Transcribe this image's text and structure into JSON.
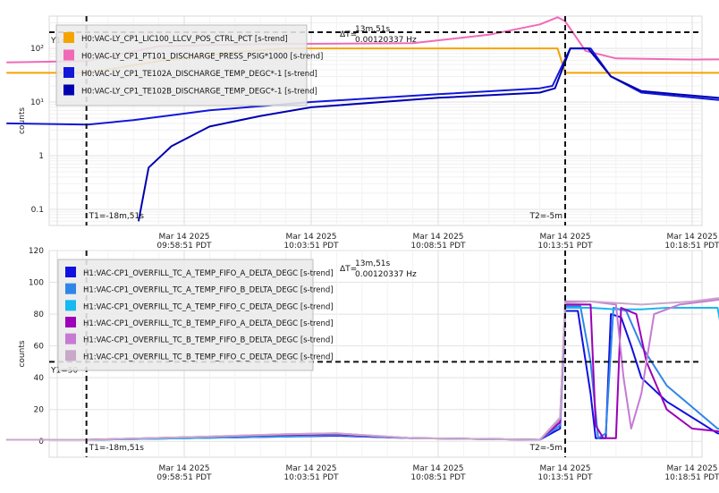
{
  "chart_data": [
    {
      "type": "line",
      "ylabel": "counts",
      "yscale": "log",
      "yticks": [
        "0.1",
        "1",
        "10¹",
        "10²"
      ],
      "ytick_values": [
        0.1,
        1,
        10,
        100
      ],
      "ylim": [
        0.05,
        400
      ],
      "xlim_minutes": [
        -22,
        13
      ],
      "xticks": [
        {
          "minute": -15,
          "date": "Mar 14 2025",
          "time": "09:58:51 PDT"
        },
        {
          "minute": -10,
          "date": "Mar 14 2025",
          "time": "10:03:51 PDT"
        },
        {
          "minute": -5,
          "date": "Mar 14 2025",
          "time": "10:08:51 PDT"
        },
        {
          "minute": 0,
          "date": "Mar 14 2025",
          "time": "10:13:51 PDT"
        },
        {
          "minute": 5,
          "date": "Mar 14 2025",
          "time": "10:18:51 PDT"
        }
      ],
      "cursor_t1": {
        "minute": -18.85,
        "label": "T1=-18m,51s"
      },
      "cursor_t2": {
        "minute": -5,
        "label": "T2=-5m"
      },
      "cursor_y1": {
        "value": 200,
        "label": "Y1="
      },
      "delta": {
        "label": "ΔT=",
        "value": "13m,51s",
        "freq": "0.00120337 Hz"
      },
      "legend_placement": "top-left",
      "series": [
        {
          "name": "H0:VAC-LY_CP1_LIC100_LLCV_POS_CTRL_PCT [s-trend]",
          "color": "#f5a300",
          "points": [
            [
              -22,
              35
            ],
            [
              -18.8,
              35
            ],
            [
              -16,
              58
            ],
            [
              -13,
              85
            ],
            [
              -11,
              100
            ],
            [
              -0.3,
              100
            ],
            [
              0,
              35
            ],
            [
              13,
              35
            ]
          ]
        },
        {
          "name": "H0:VAC-LY_CP1_PT101_DISCHARGE_PRESS_PSIG*1000 [s-trend]",
          "color": "#f06ab8",
          "points": [
            [
              -22,
              55
            ],
            [
              -18.8,
              58
            ],
            [
              -16,
              110
            ],
            [
              -12,
              120
            ],
            [
              -6,
              125
            ],
            [
              -3,
              180
            ],
            [
              -1,
              280
            ],
            [
              -0.3,
              380
            ],
            [
              0,
              320
            ],
            [
              0.8,
              90
            ],
            [
              2,
              65
            ],
            [
              5,
              62
            ],
            [
              8,
              63
            ],
            [
              11,
              60
            ],
            [
              13,
              58
            ]
          ]
        },
        {
          "name": "H0:VAC-LY_CP1_TE102A_DISCHARGE_TEMP_DEGC*-1 [s-trend]",
          "color": "#1218d8",
          "points": [
            [
              -22,
              4
            ],
            [
              -18.8,
              3.8
            ],
            [
              -17,
              4.6
            ],
            [
              -14,
              7
            ],
            [
              -10,
              10
            ],
            [
              -5,
              14
            ],
            [
              -1,
              18
            ],
            [
              -0.5,
              20
            ],
            [
              0.2,
              100
            ],
            [
              1,
              100
            ],
            [
              1.8,
              30
            ],
            [
              3,
              15
            ],
            [
              6,
              11
            ],
            [
              10,
              9
            ],
            [
              13,
              8.5
            ]
          ]
        },
        {
          "name": "H0:VAC-LY_CP1_TE102B_DISCHARGE_TEMP_DEGC*-1 [s-trend]",
          "color": "#0000b0",
          "points": [
            [
              -16.8,
              0.06
            ],
            [
              -16.4,
              0.6
            ],
            [
              -15.5,
              1.5
            ],
            [
              -14,
              3.5
            ],
            [
              -12,
              5.5
            ],
            [
              -10,
              8
            ],
            [
              -5,
              12
            ],
            [
              -1,
              15
            ],
            [
              -0.4,
              18
            ],
            [
              0.2,
              100
            ],
            [
              0.9,
              100
            ],
            [
              1.8,
              30
            ],
            [
              3,
              16
            ],
            [
              6,
              12
            ],
            [
              10,
              10
            ],
            [
              13,
              9
            ]
          ]
        }
      ]
    },
    {
      "type": "line",
      "ylabel": "counts",
      "yticks": [
        "0",
        "20",
        "40",
        "60",
        "80",
        "100",
        "120"
      ],
      "ytick_values": [
        0,
        20,
        40,
        60,
        80,
        100,
        120
      ],
      "ylim": [
        -10,
        120
      ],
      "xlim_minutes": [
        -22,
        13
      ],
      "xticks": [
        {
          "minute": -15,
          "date": "Mar 14 2025",
          "time": "09:58:51 PDT"
        },
        {
          "minute": -10,
          "date": "Mar 14 2025",
          "time": "10:03:51 PDT"
        },
        {
          "minute": -5,
          "date": "Mar 14 2025",
          "time": "10:08:51 PDT"
        },
        {
          "minute": 0,
          "date": "Mar 14 2025",
          "time": "10:13:51 PDT"
        },
        {
          "minute": 5,
          "date": "Mar 14 2025",
          "time": "10:18:51 PDT"
        }
      ],
      "cursor_t1": {
        "minute": -18.85,
        "label": "T1=-18m,51s"
      },
      "cursor_t2": {
        "minute": -5,
        "label": "T2=-5m"
      },
      "cursor_y1": {
        "value": 50,
        "label": "Y1=50"
      },
      "delta": {
        "label": "ΔT=",
        "value": "13m,51s",
        "freq": "0.00120337 Hz"
      },
      "legend_placement": "top-left",
      "series": [
        {
          "name": "H1:VAC-CP1_OVERFILL_TC_A_TEMP_FIFO_A_DELTA_DEGC [s-trend]",
          "color": "#1010e0",
          "points": [
            [
              -22,
              1
            ],
            [
              -18.8,
              1
            ],
            [
              -15,
              2
            ],
            [
              -11,
              3
            ],
            [
              -9,
              3.5
            ],
            [
              -6,
              2
            ],
            [
              -1,
              1
            ],
            [
              -0.2,
              8
            ],
            [
              0,
              82
            ],
            [
              0.5,
              82
            ],
            [
              1,
              30
            ],
            [
              1.2,
              2
            ],
            [
              1.6,
              2
            ],
            [
              1.8,
              80
            ],
            [
              2.2,
              78
            ],
            [
              2.6,
              60
            ],
            [
              3,
              40
            ],
            [
              4,
              25
            ],
            [
              6,
              5
            ],
            [
              8,
              2
            ],
            [
              13,
              1
            ]
          ]
        },
        {
          "name": "H1:VAC-CP1_OVERFILL_TC_A_TEMP_FIFO_B_DELTA_DEGC [s-trend]",
          "color": "#2f86e8",
          "points": [
            [
              -22,
              1
            ],
            [
              -18.8,
              1
            ],
            [
              -15,
              2
            ],
            [
              -11,
              3
            ],
            [
              -9,
              4
            ],
            [
              -6,
              2
            ],
            [
              -1,
              1
            ],
            [
              -0.2,
              10
            ],
            [
              0,
              85
            ],
            [
              0.6,
              85
            ],
            [
              1,
              50
            ],
            [
              1.3,
              2
            ],
            [
              1.6,
              5
            ],
            [
              1.9,
              84
            ],
            [
              2.4,
              82
            ],
            [
              3,
              60
            ],
            [
              4,
              35
            ],
            [
              6,
              8
            ],
            [
              9,
              3
            ],
            [
              13,
              1
            ]
          ]
        },
        {
          "name": "H1:VAC-CP1_OVERFILL_TC_A_TEMP_FIFO_C_DELTA_DEGC [s-trend]",
          "color": "#18b8f0",
          "points": [
            [
              -22,
              1
            ],
            [
              -18.8,
              1
            ],
            [
              -15,
              2
            ],
            [
              -11,
              3.5
            ],
            [
              -9,
              4
            ],
            [
              -6,
              2
            ],
            [
              -1,
              1
            ],
            [
              -0.2,
              12
            ],
            [
              0,
              84
            ],
            [
              1,
              84
            ],
            [
              2,
              83
            ],
            [
              3,
              83
            ],
            [
              4,
              84
            ],
            [
              6,
              84
            ],
            [
              6.5,
              40
            ],
            [
              7,
              15
            ],
            [
              8,
              6
            ],
            [
              10,
              3
            ],
            [
              13,
              1
            ]
          ]
        },
        {
          "name": "H1:VAC-CP1_OVERFILL_TC_B_TEMP_FIFO_A_DELTA_DEGC [s-trend]",
          "color": "#9c00b8",
          "points": [
            [
              -22,
              1
            ],
            [
              -18.8,
              1
            ],
            [
              -15,
              2.5
            ],
            [
              -11,
              4
            ],
            [
              -9,
              4.5
            ],
            [
              -6,
              2
            ],
            [
              -1,
              1
            ],
            [
              -0.2,
              12
            ],
            [
              0,
              86
            ],
            [
              0.7,
              86
            ],
            [
              1,
              86
            ],
            [
              1.2,
              10
            ],
            [
              1.5,
              2
            ],
            [
              2,
              2
            ],
            [
              2.2,
              84
            ],
            [
              2.8,
              80
            ],
            [
              3.2,
              50
            ],
            [
              4,
              20
            ],
            [
              5,
              8
            ],
            [
              8,
              3
            ],
            [
              13,
              1
            ]
          ]
        },
        {
          "name": "H1:VAC-CP1_OVERFILL_TC_B_TEMP_FIFO_B_DELTA_DEGC [s-trend]",
          "color": "#c67ad4",
          "points": [
            [
              -22,
              1
            ],
            [
              -18.8,
              1
            ],
            [
              -15,
              2.5
            ],
            [
              -11,
              4.5
            ],
            [
              -9,
              5
            ],
            [
              -6,
              2
            ],
            [
              -1,
              1
            ],
            [
              -0.2,
              14
            ],
            [
              0,
              88
            ],
            [
              1,
              88
            ],
            [
              2,
              86
            ],
            [
              2.3,
              40
            ],
            [
              2.6,
              8
            ],
            [
              3,
              30
            ],
            [
              3.5,
              80
            ],
            [
              4.5,
              86
            ],
            [
              5.5,
              88
            ],
            [
              6.5,
              90
            ],
            [
              7,
              40
            ],
            [
              8,
              12
            ],
            [
              10,
              4
            ],
            [
              13,
              1
            ]
          ]
        },
        {
          "name": "H1:VAC-CP1_OVERFILL_TC_B_TEMP_FIFO_C_DELTA_DEGC [s-trend]",
          "color": "#c9a8c9",
          "points": [
            [
              -22,
              1
            ],
            [
              -18.8,
              1
            ],
            [
              -15,
              2.5
            ],
            [
              -11,
              4.5
            ],
            [
              -9,
              5
            ],
            [
              -6,
              2
            ],
            [
              -1,
              1
            ],
            [
              -0.2,
              15
            ],
            [
              0,
              87
            ],
            [
              1,
              88
            ],
            [
              2,
              87
            ],
            [
              3,
              86
            ],
            [
              5,
              88
            ],
            [
              6,
              90
            ],
            [
              7,
              92
            ],
            [
              7.2,
              50
            ],
            [
              8,
              15
            ],
            [
              10,
              5
            ],
            [
              13,
              1
            ]
          ]
        }
      ]
    }
  ]
}
